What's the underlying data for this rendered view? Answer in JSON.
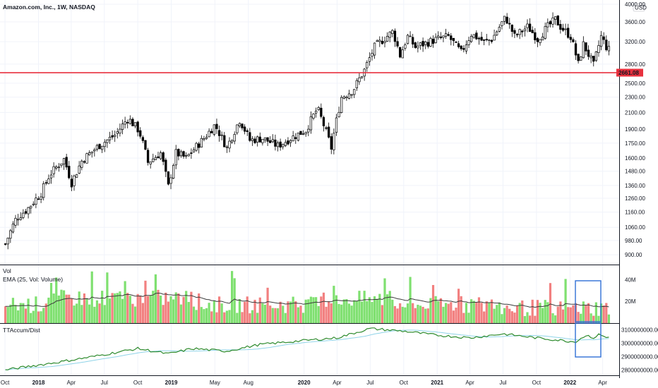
{
  "header": {
    "symbol_title": "Amazon.com, Inc., 1W, NASDAQ",
    "currency": "USD"
  },
  "colors": {
    "up": "#26a69a",
    "down": "#ef5350",
    "candle": "#000000",
    "vol_up": "#7fe070",
    "vol_down": "#f28080",
    "ema": "#3a3a3a",
    "accum": "#2e8b2e",
    "accum_sma": "#8fd3e8",
    "support": "#e8313e",
    "highlight": "#2f6fd6",
    "grid": "#f0f3fa"
  },
  "chart_data": [
    {
      "type": "candlestick",
      "name": "price",
      "y_ticks": [
        "4000.00",
        "3600.00",
        "3200.00",
        "2800.00",
        "2500.00",
        "2300.00",
        "2100.00",
        "1900.00",
        "1750.00",
        "1600.00",
        "1480.00",
        "1360.00",
        "1260.00",
        "1160.00",
        "1060.00",
        "980.00",
        "900.00"
      ],
      "y_tick_values": [
        4000,
        3600,
        3200,
        2800,
        2500,
        2300,
        2100,
        1900,
        1750,
        1600,
        1480,
        1360,
        1260,
        1160,
        1060,
        980,
        900
      ],
      "log_scale": true,
      "ylim": [
        860,
        4050
      ],
      "x_ticks": [
        "Oct",
        "2018",
        "Apr",
        "Jul",
        "Oct",
        "2019",
        "May",
        "Aug",
        "2020",
        "Apr",
        "Jul",
        "Oct",
        "2021",
        "Apr",
        "Jul",
        "Oct",
        "2022",
        "Apr"
      ],
      "support_line": {
        "value": 2661.08,
        "label": "2661.08"
      },
      "anchors": [
        [
          "2017-10-02",
          960
        ],
        [
          "2017-11-01",
          1120
        ],
        [
          "2017-12-01",
          1180
        ],
        [
          "2018-01-08",
          1300
        ],
        [
          "2018-02-01",
          1450
        ],
        [
          "2018-03-12",
          1590
        ],
        [
          "2018-04-02",
          1380
        ],
        [
          "2018-05-01",
          1580
        ],
        [
          "2018-06-15",
          1720
        ],
        [
          "2018-08-01",
          1840
        ],
        [
          "2018-09-04",
          2030
        ],
        [
          "2018-10-05",
          1880
        ],
        [
          "2018-10-29",
          1560
        ],
        [
          "2018-12-03",
          1650
        ],
        [
          "2018-12-24",
          1350
        ],
        [
          "2019-01-14",
          1650
        ],
        [
          "2019-02-11",
          1600
        ],
        [
          "2019-04-01",
          1800
        ],
        [
          "2019-05-01",
          1950
        ],
        [
          "2019-06-03",
          1700
        ],
        [
          "2019-07-08",
          2010
        ],
        [
          "2019-08-05",
          1780
        ],
        [
          "2019-09-09",
          1800
        ],
        [
          "2019-10-21",
          1720
        ],
        [
          "2019-11-25",
          1800
        ],
        [
          "2020-01-06",
          1890
        ],
        [
          "2020-02-07",
          2150
        ],
        [
          "2020-03-16",
          1700
        ],
        [
          "2020-04-13",
          2300
        ],
        [
          "2020-05-15",
          2400
        ],
        [
          "2020-06-15",
          2700
        ],
        [
          "2020-07-13",
          3100
        ],
        [
          "2020-09-01",
          3400
        ],
        [
          "2020-09-21",
          2950
        ],
        [
          "2020-10-12",
          3300
        ],
        [
          "2020-11-02",
          3100
        ],
        [
          "2021-01-01",
          3250
        ],
        [
          "2021-02-01",
          3300
        ],
        [
          "2021-03-08",
          3000
        ],
        [
          "2021-04-05",
          3350
        ],
        [
          "2021-05-10",
          3200
        ],
        [
          "2021-06-01",
          3250
        ],
        [
          "2021-07-08",
          3700
        ],
        [
          "2021-08-02",
          3300
        ],
        [
          "2021-09-07",
          3500
        ],
        [
          "2021-10-04",
          3250
        ],
        [
          "2021-11-01",
          3500
        ],
        [
          "2021-11-22",
          3650
        ],
        [
          "2021-12-06",
          3500
        ],
        [
          "2022-01-03",
          3300
        ],
        [
          "2022-01-24",
          2800
        ],
        [
          "2022-02-07",
          3150
        ],
        [
          "2022-03-07",
          2780
        ],
        [
          "2022-03-28",
          3300
        ],
        [
          "2022-04-15",
          3050
        ]
      ]
    },
    {
      "type": "bar",
      "name": "volume",
      "pane_title": "Vol",
      "pane_subtitle": "EMA (25, Vol: Volume)",
      "y_ticks": [
        "40M",
        "20M"
      ],
      "y_tick_values": [
        40,
        20
      ],
      "ylim": [
        0,
        52
      ],
      "unit": "M"
    },
    {
      "type": "line",
      "name": "accumulation-distribution",
      "pane_title": "TTAccum/Dist",
      "y_ticks": [
        "3100000000.00",
        "3000000000.00",
        "2900000000.00",
        "2800000000.00"
      ],
      "y_tick_values": [
        3100000000,
        3000000000,
        2900000000,
        2800000000
      ],
      "ylim": [
        2770000000,
        3140000000
      ],
      "anchors": [
        [
          "2017-10-02",
          2800000000
        ],
        [
          "2018-03-01",
          2860000000
        ],
        [
          "2018-06-01",
          2900000000
        ],
        [
          "2018-10-01",
          2960000000
        ],
        [
          "2018-12-24",
          2920000000
        ],
        [
          "2019-03-01",
          2960000000
        ],
        [
          "2019-06-01",
          2940000000
        ],
        [
          "2019-09-01",
          2990000000
        ],
        [
          "2020-01-01",
          3020000000
        ],
        [
          "2020-04-01",
          3040000000
        ],
        [
          "2020-07-01",
          3110000000
        ],
        [
          "2020-10-01",
          3090000000
        ],
        [
          "2021-01-01",
          3060000000
        ],
        [
          "2021-04-01",
          3040000000
        ],
        [
          "2021-07-01",
          3070000000
        ],
        [
          "2021-10-01",
          3040000000
        ],
        [
          "2022-01-15",
          3010000000
        ],
        [
          "2022-02-15",
          3060000000
        ],
        [
          "2022-03-10",
          3040000000
        ],
        [
          "2022-03-25",
          3070000000
        ],
        [
          "2022-04-15",
          3040000000
        ]
      ]
    }
  ]
}
